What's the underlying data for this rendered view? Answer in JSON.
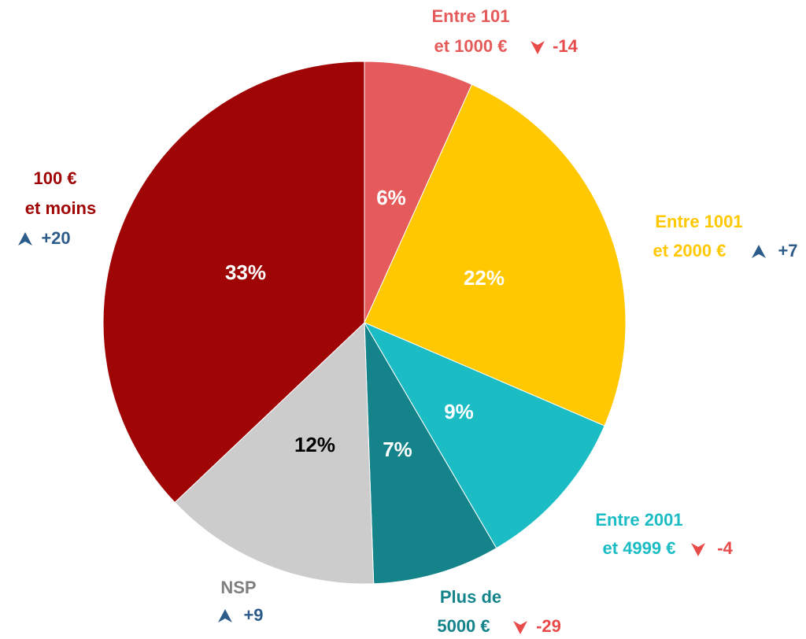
{
  "chart_data": {
    "type": "pie",
    "categories": [
      [
        "Entre 101",
        "et 1000 €"
      ],
      [
        "Entre 1001",
        "et 2000 €"
      ],
      [
        "Entre 2001",
        "et 4999 €"
      ],
      [
        "Plus de",
        "5000 €"
      ],
      [
        "NSP"
      ],
      [
        "100 €",
        "et moins"
      ]
    ],
    "values": [
      6,
      22,
      9,
      7,
      12,
      33
    ],
    "value_labels": [
      "6%",
      "22%",
      "9%",
      "7%",
      "12%",
      "33%"
    ],
    "colors": [
      "#e55a5a",
      "#ffc800",
      "#1bbcc4",
      "#14838a",
      "#cccccc",
      "#a00505"
    ],
    "label_colors": [
      "#e55a5a",
      "#ffc800",
      "#1bbcc4",
      "#14838a",
      "#7f7f7f",
      "#a00505"
    ],
    "value_label_colors": [
      "#ffffff",
      "#ffffff",
      "#ffffff",
      "#ffffff",
      "#000000",
      "#ffffff"
    ],
    "changes": [
      -14,
      7,
      -4,
      -29,
      9,
      20
    ],
    "change_labels": [
      "-14",
      "+7",
      "-4",
      "-29",
      "+9",
      "+20"
    ]
  }
}
